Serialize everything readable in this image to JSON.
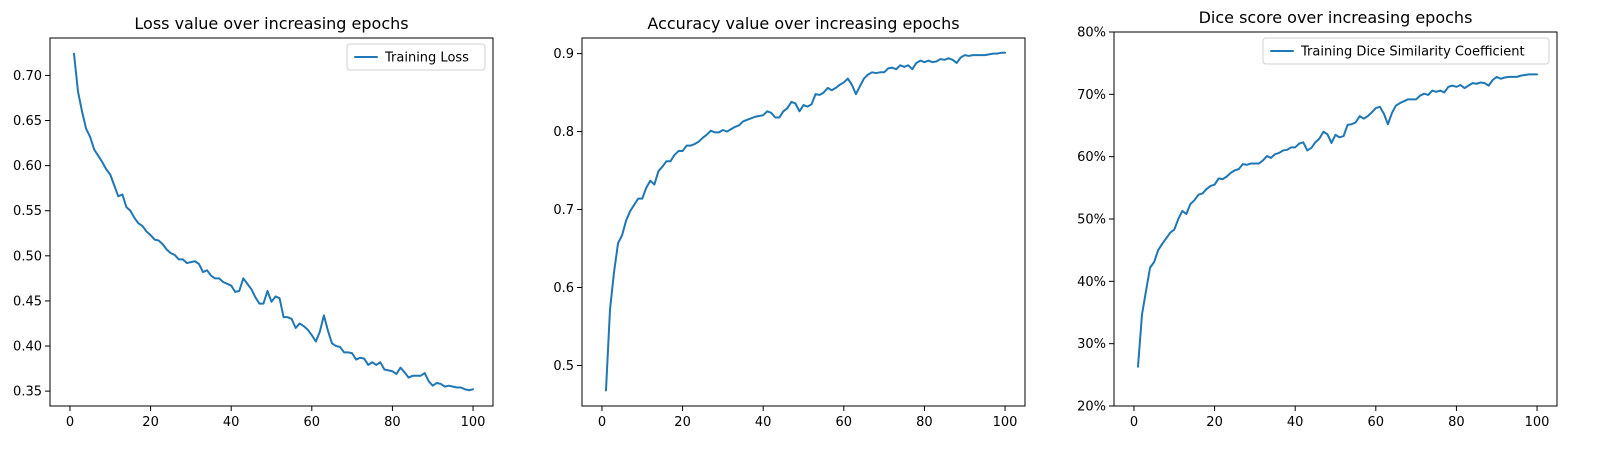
{
  "chart_data": [
    {
      "type": "line",
      "title": "Loss value over increasing epochs",
      "xlim": [
        -4.95,
        104.95
      ],
      "ylim": [
        0.3335,
        0.7415
      ],
      "xticks": [
        0,
        20,
        40,
        60,
        80,
        100
      ],
      "yticks": [
        0.35,
        0.4,
        0.45,
        0.5,
        0.55,
        0.6,
        0.65,
        0.7
      ],
      "ytick_format": "fixed2",
      "legend": "top-right",
      "series": [
        {
          "name": "Training Loss",
          "color": "#1f77b4",
          "x": [
            1,
            2,
            3,
            4,
            5,
            6,
            7,
            8,
            9,
            10,
            11,
            12,
            13,
            14,
            15,
            16,
            17,
            18,
            19,
            20,
            21,
            22,
            23,
            24,
            25,
            26,
            27,
            28,
            29,
            30,
            31,
            32,
            33,
            34,
            35,
            36,
            37,
            38,
            39,
            40,
            41,
            42,
            43,
            44,
            45,
            46,
            47,
            48,
            49,
            50,
            51,
            52,
            53,
            54,
            55,
            56,
            57,
            58,
            59,
            60,
            61,
            62,
            63,
            64,
            65,
            66,
            67,
            68,
            69,
            70,
            71,
            72,
            73,
            74,
            75,
            76,
            77,
            78,
            79,
            80,
            81,
            82,
            83,
            84,
            85,
            86,
            87,
            88,
            89,
            90,
            91,
            92,
            93,
            94,
            95,
            96,
            97,
            98,
            99,
            100
          ],
          "y": [
            0.724,
            0.682,
            0.66,
            0.641,
            0.632,
            0.618,
            0.611,
            0.604,
            0.596,
            0.59,
            0.578,
            0.566,
            0.568,
            0.554,
            0.55,
            0.542,
            0.536,
            0.533,
            0.527,
            0.523,
            0.518,
            0.517,
            0.513,
            0.507,
            0.503,
            0.501,
            0.496,
            0.496,
            0.492,
            0.493,
            0.494,
            0.491,
            0.482,
            0.484,
            0.478,
            0.475,
            0.475,
            0.471,
            0.469,
            0.467,
            0.46,
            0.461,
            0.475,
            0.469,
            0.463,
            0.454,
            0.447,
            0.447,
            0.461,
            0.449,
            0.455,
            0.453,
            0.432,
            0.432,
            0.43,
            0.42,
            0.425,
            0.422,
            0.418,
            0.412,
            0.405,
            0.416,
            0.434,
            0.417,
            0.403,
            0.4,
            0.399,
            0.393,
            0.393,
            0.392,
            0.385,
            0.387,
            0.386,
            0.379,
            0.382,
            0.379,
            0.382,
            0.374,
            0.373,
            0.372,
            0.369,
            0.376,
            0.371,
            0.365,
            0.367,
            0.367,
            0.367,
            0.37,
            0.361,
            0.356,
            0.359,
            0.358,
            0.355,
            0.356,
            0.355,
            0.354,
            0.354,
            0.352,
            0.351,
            0.352
          ]
        }
      ]
    },
    {
      "type": "line",
      "title": "Accuracy value over increasing epochs",
      "xlim": [
        -4.95,
        104.95
      ],
      "ylim": [
        0.448,
        0.92
      ],
      "xticks": [
        0,
        20,
        40,
        60,
        80,
        100
      ],
      "yticks": [
        0.5,
        0.6,
        0.7,
        0.8,
        0.9
      ],
      "ytick_format": "fixed1",
      "legend": null,
      "series": [
        {
          "name": "",
          "color": "#1f77b4",
          "x": [
            1,
            2,
            3,
            4,
            5,
            6,
            7,
            8,
            9,
            10,
            11,
            12,
            13,
            14,
            15,
            16,
            17,
            18,
            19,
            20,
            21,
            22,
            23,
            24,
            25,
            26,
            27,
            28,
            29,
            30,
            31,
            32,
            33,
            34,
            35,
            36,
            37,
            38,
            39,
            40,
            41,
            42,
            43,
            44,
            45,
            46,
            47,
            48,
            49,
            50,
            51,
            52,
            53,
            54,
            55,
            56,
            57,
            58,
            59,
            60,
            61,
            62,
            63,
            64,
            65,
            66,
            67,
            68,
            69,
            70,
            71,
            72,
            73,
            74,
            75,
            76,
            77,
            78,
            79,
            80,
            81,
            82,
            83,
            84,
            85,
            86,
            87,
            88,
            89,
            90,
            91,
            92,
            93,
            94,
            95,
            96,
            97,
            98,
            99,
            100
          ],
          "y": [
            0.468,
            0.572,
            0.62,
            0.657,
            0.667,
            0.686,
            0.698,
            0.706,
            0.714,
            0.714,
            0.728,
            0.737,
            0.732,
            0.749,
            0.755,
            0.762,
            0.762,
            0.77,
            0.775,
            0.775,
            0.782,
            0.782,
            0.784,
            0.787,
            0.792,
            0.796,
            0.801,
            0.799,
            0.799,
            0.802,
            0.8,
            0.803,
            0.806,
            0.808,
            0.813,
            0.815,
            0.817,
            0.819,
            0.82,
            0.821,
            0.826,
            0.824,
            0.818,
            0.818,
            0.826,
            0.83,
            0.838,
            0.836,
            0.826,
            0.834,
            0.832,
            0.835,
            0.848,
            0.847,
            0.85,
            0.856,
            0.853,
            0.856,
            0.86,
            0.863,
            0.868,
            0.86,
            0.848,
            0.858,
            0.868,
            0.873,
            0.876,
            0.875,
            0.876,
            0.876,
            0.881,
            0.882,
            0.88,
            0.885,
            0.883,
            0.885,
            0.88,
            0.888,
            0.891,
            0.889,
            0.891,
            0.889,
            0.89,
            0.893,
            0.892,
            0.894,
            0.892,
            0.888,
            0.895,
            0.898,
            0.897,
            0.898,
            0.898,
            0.898,
            0.898,
            0.899,
            0.9,
            0.9,
            0.901,
            0.901
          ]
        }
      ]
    },
    {
      "type": "line",
      "title": "Dice score over increasing epochs",
      "xlim": [
        -4.95,
        104.95
      ],
      "ylim": [
        20,
        80
      ],
      "xticks": [
        0,
        20,
        40,
        60,
        80,
        100
      ],
      "yticks": [
        20,
        30,
        40,
        50,
        60,
        70,
        80
      ],
      "ytick_format": "percent",
      "legend": "top-right",
      "series": [
        {
          "name": "Training Dice Similarity Coefficient",
          "color": "#1f77b4",
          "x": [
            1,
            2,
            3,
            4,
            5,
            6,
            7,
            8,
            9,
            10,
            11,
            12,
            13,
            14,
            15,
            16,
            17,
            18,
            19,
            20,
            21,
            22,
            23,
            24,
            25,
            26,
            27,
            28,
            29,
            30,
            31,
            32,
            33,
            34,
            35,
            36,
            37,
            38,
            39,
            40,
            41,
            42,
            43,
            44,
            45,
            46,
            47,
            48,
            49,
            50,
            51,
            52,
            53,
            54,
            55,
            56,
            57,
            58,
            59,
            60,
            61,
            62,
            63,
            64,
            65,
            66,
            67,
            68,
            69,
            70,
            71,
            72,
            73,
            74,
            75,
            76,
            77,
            78,
            79,
            80,
            81,
            82,
            83,
            84,
            85,
            86,
            87,
            88,
            89,
            90,
            91,
            92,
            93,
            94,
            95,
            96,
            97,
            98,
            99,
            100
          ],
          "y": [
            26.3,
            34.7,
            38.5,
            42.2,
            43.1,
            45.0,
            46.0,
            46.9,
            47.8,
            48.3,
            50.0,
            51.3,
            50.8,
            52.4,
            53.0,
            53.9,
            54.1,
            54.8,
            55.3,
            55.5,
            56.5,
            56.4,
            56.8,
            57.4,
            57.8,
            58.0,
            58.8,
            58.7,
            58.9,
            58.9,
            58.9,
            59.4,
            60.1,
            59.8,
            60.4,
            60.6,
            61.0,
            61.1,
            61.5,
            61.5,
            62.1,
            62.3,
            61.0,
            61.4,
            62.3,
            62.9,
            64.0,
            63.6,
            62.2,
            63.5,
            63.1,
            63.3,
            65.1,
            65.2,
            65.5,
            66.5,
            66.1,
            66.5,
            67.1,
            67.8,
            68.0,
            66.9,
            65.2,
            67.0,
            68.2,
            68.6,
            68.9,
            69.2,
            69.2,
            69.2,
            69.8,
            70.1,
            69.9,
            70.6,
            70.4,
            70.6,
            70.3,
            71.2,
            71.4,
            71.2,
            71.5,
            71.0,
            71.4,
            71.8,
            71.7,
            71.9,
            71.8,
            71.4,
            72.3,
            72.8,
            72.5,
            72.7,
            72.8,
            72.8,
            72.8,
            73.0,
            73.1,
            73.2,
            73.2,
            73.2
          ]
        }
      ]
    }
  ]
}
